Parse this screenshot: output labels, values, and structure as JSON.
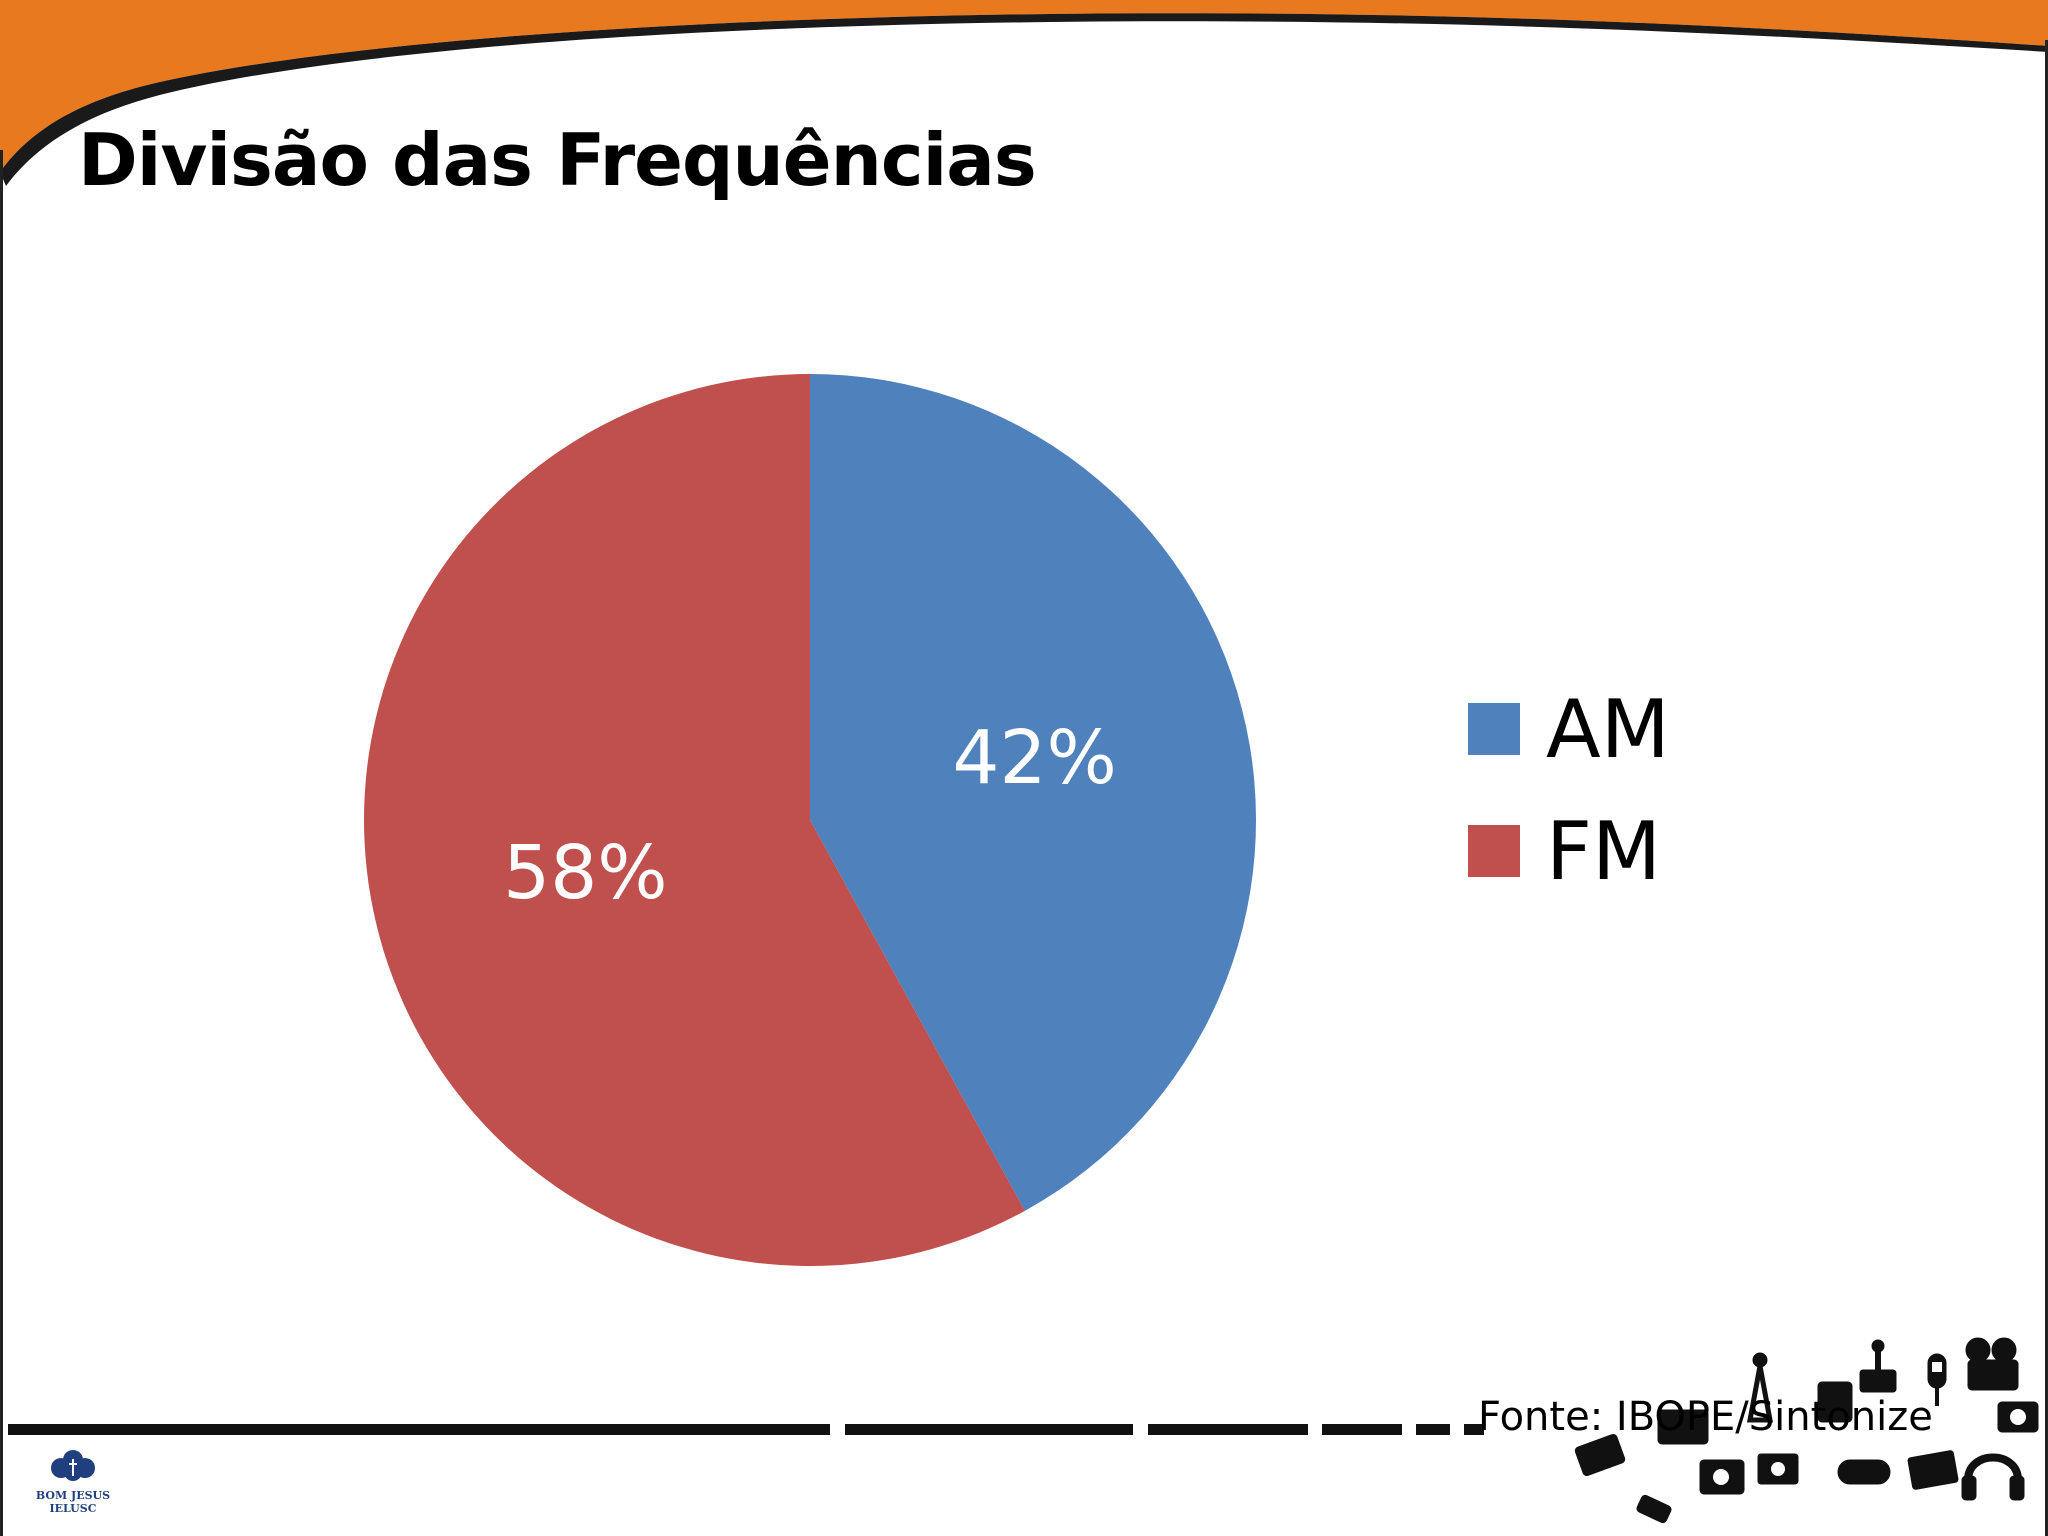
{
  "slide": {
    "title": "Divisão das Frequências",
    "source_note": "Fonte: IBOPE/Sintonize",
    "logo_text": [
      "BOM JESUS",
      "IELUSC"
    ]
  },
  "colors": {
    "banner_orange": "#E8791E",
    "banner_edge": "#1a1a1a",
    "am_slice": "#4F81BD",
    "fm_slice": "#C0504D",
    "logo_blue": "#1F3F7F"
  },
  "chart_data": {
    "type": "pie",
    "title": "",
    "categories": [
      "AM",
      "FM"
    ],
    "values": [
      42,
      58
    ],
    "labels": [
      "42%",
      "58%"
    ],
    "colors": [
      "#4F81BD",
      "#C0504D"
    ],
    "start_angle": "12 o'clock, clockwise",
    "legend_position": "right"
  },
  "icons": [
    "media-devices-icon",
    "radio-tower-icon",
    "camera-icon",
    "video-camera-icon",
    "microphone-icon",
    "headphones-icon",
    "laptop-icon",
    "gamepad-icon",
    "tv-icon"
  ]
}
